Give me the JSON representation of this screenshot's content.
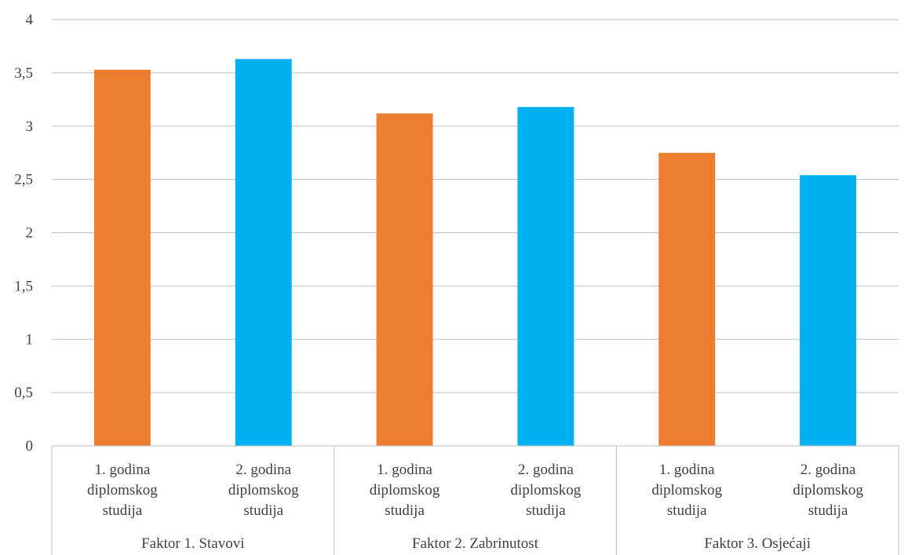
{
  "chart_data": {
    "type": "bar",
    "ylim": [
      0,
      4
    ],
    "yticks": [
      "0",
      "0,5",
      "1",
      "1,5",
      "2",
      "2,5",
      "3",
      "3,5",
      "4"
    ],
    "grid": true,
    "groups": [
      {
        "label": "Faktor 1. Stavovi",
        "bars": [
          {
            "label_lines": [
              "1. godina",
              "diplomskog",
              "studija"
            ],
            "value": 3.53,
            "color": "#ed7d31"
          },
          {
            "label_lines": [
              "2. godina",
              "diplomskog",
              "studija"
            ],
            "value": 3.63,
            "color": "#00b0f0"
          }
        ]
      },
      {
        "label": "Faktor 2. Zabrinutost",
        "bars": [
          {
            "label_lines": [
              "1. godina",
              "diplomskog",
              "studija"
            ],
            "value": 3.12,
            "color": "#ed7d31"
          },
          {
            "label_lines": [
              "2. godina",
              "diplomskog",
              "studija"
            ],
            "value": 3.18,
            "color": "#00b0f0"
          }
        ]
      },
      {
        "label": "Faktor 3. Osjećaji",
        "bars": [
          {
            "label_lines": [
              "1. godina",
              "diplomskog",
              "studija"
            ],
            "value": 2.75,
            "color": "#ed7d31"
          },
          {
            "label_lines": [
              "2. godina",
              "diplomskog",
              "studija"
            ],
            "value": 2.54,
            "color": "#00b0f0"
          }
        ]
      }
    ]
  }
}
